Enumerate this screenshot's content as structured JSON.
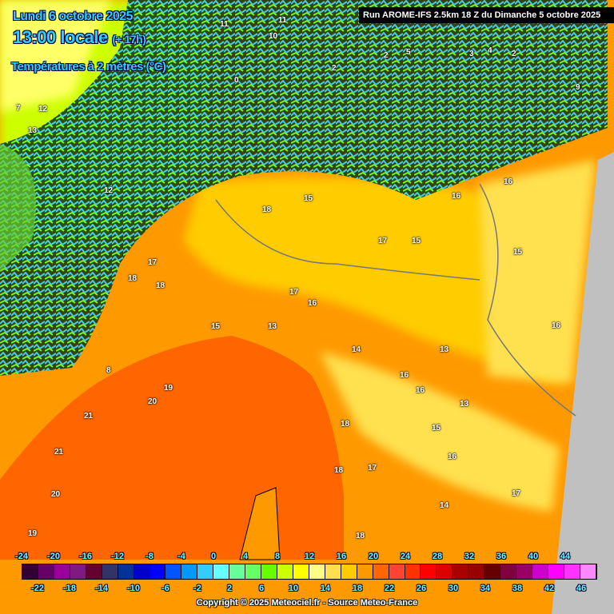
{
  "header": {
    "date": "Lundi 6 octobre 2025",
    "time": "13:00 locale",
    "lead": "(+ 17h)",
    "variable": "Températures à 2 mètres (°C)",
    "run": "Run AROME-IFS 2.5km 18 Z du Dimanche 5 octobre 2025"
  },
  "legend": {
    "upper_ticks": [
      "-24",
      "-20",
      "-16",
      "-12",
      "-8",
      "-4",
      "0",
      "4",
      "8",
      "12",
      "16",
      "20",
      "24",
      "28",
      "32",
      "36",
      "40",
      "44"
    ],
    "lower_ticks": [
      "-22",
      "-18",
      "-14",
      "-10",
      "-6",
      "-2",
      "2",
      "6",
      "10",
      "14",
      "18",
      "22",
      "26",
      "30",
      "34",
      "38",
      "42",
      "46"
    ],
    "colors": [
      "#330033",
      "#660066",
      "#990099",
      "#801a80",
      "#660033",
      "#333366",
      "#003399",
      "#0000cc",
      "#0000ff",
      "#0055ff",
      "#0099ff",
      "#33ccff",
      "#66ffff",
      "#66ff99",
      "#66ff66",
      "#66ff00",
      "#ccff00",
      "#ffff00",
      "#ffff88",
      "#ffe050",
      "#ffcc00",
      "#ff9900",
      "#ff6600",
      "#ff4433",
      "#ff3300",
      "#ff0000",
      "#dd0000",
      "#aa0000",
      "#990000",
      "#660000",
      "#800040",
      "#990066",
      "#cc00cc",
      "#ff00ff",
      "#ff33ff",
      "#ff88ff"
    ]
  },
  "map_labels": [
    "11",
    "11",
    "10",
    "12",
    "7",
    "12",
    "13",
    "2",
    "0",
    "5",
    "2",
    "3",
    "4",
    "2",
    "9",
    "16",
    "16",
    "15",
    "17",
    "15",
    "18",
    "17",
    "18",
    "18",
    "17",
    "16",
    "15",
    "13",
    "16",
    "16",
    "15",
    "14",
    "13",
    "16",
    "18",
    "18",
    "17",
    "21",
    "20",
    "19",
    "21",
    "20",
    "18",
    "16",
    "17",
    "14",
    "19",
    "13",
    "8",
    "15"
  ],
  "colors": {
    "sea": "#ff6600",
    "land_warm": "#ff9900",
    "plain": "#ffcc00",
    "outside_domain": "#c0c0c0",
    "title": "#33ccff"
  },
  "copyright": "Copyright © 2025 Meteociel.fr - Source Meteo-France"
}
